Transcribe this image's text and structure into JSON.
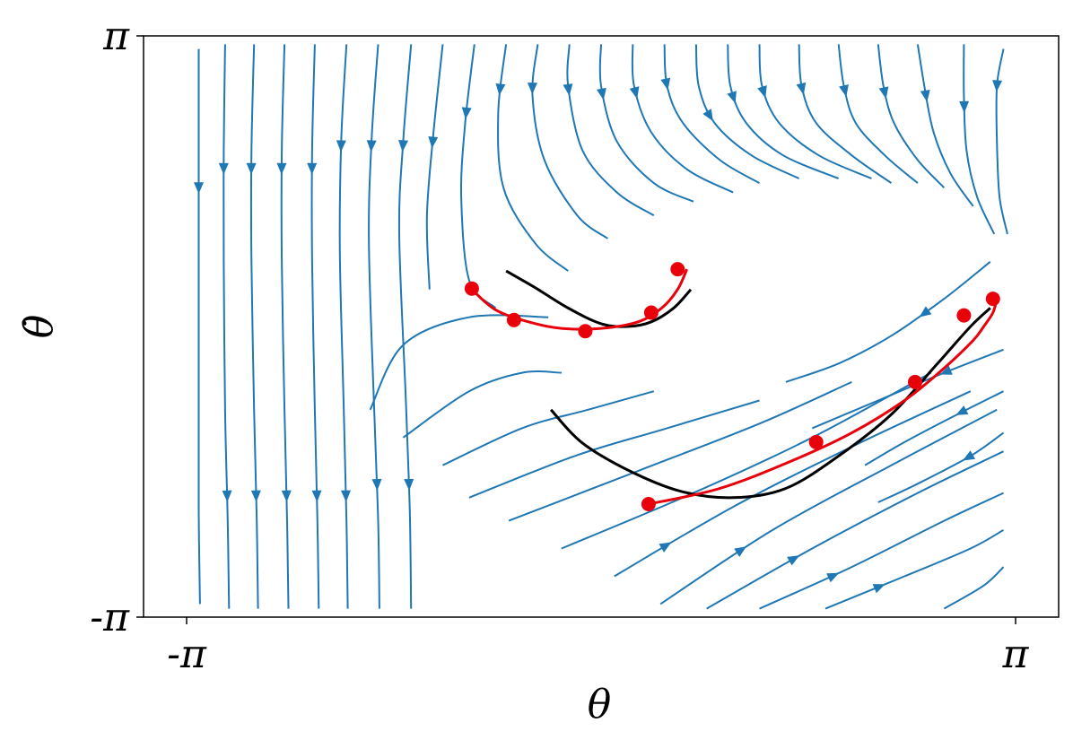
{
  "chart_data": {
    "type": "streamplot",
    "xlabel": "θ",
    "ylabel": "θ̇",
    "xlim": [
      -3.14159,
      3.14159
    ],
    "ylim": [
      -3.14159,
      3.14159
    ],
    "xticks": [
      {
        "value": -3.14159,
        "label": "-π"
      },
      {
        "value": 3.14159,
        "label": "π"
      }
    ],
    "yticks": [
      {
        "value": -3.14159,
        "label": "-π"
      },
      {
        "value": 3.14159,
        "label": "π"
      }
    ],
    "grid": false,
    "colors": {
      "stream": "#1f77b4",
      "trajectory_true": "#000000",
      "trajectory_pred": "#e8000b",
      "axes": "#000000"
    },
    "streamlines": [
      {
        "points": [
          [
            -3.05,
            3.0
          ],
          [
            -3.05,
            1.8
          ],
          [
            -3.05,
            0.6
          ],
          [
            -3.05,
            -0.8
          ],
          [
            -3.05,
            -2.0
          ],
          [
            -3.04,
            -3.0
          ]
        ],
        "arrows": [
          0.25
        ]
      },
      {
        "points": [
          [
            -2.85,
            3.05
          ],
          [
            -2.86,
            1.9
          ],
          [
            -2.86,
            0.7
          ],
          [
            -2.85,
            -0.9
          ],
          [
            -2.83,
            -2.1
          ],
          [
            -2.82,
            -3.05
          ]
        ],
        "arrows": [
          0.22,
          0.8
        ]
      },
      {
        "points": [
          [
            -2.63,
            3.05
          ],
          [
            -2.65,
            1.9
          ],
          [
            -2.65,
            0.7
          ],
          [
            -2.63,
            -0.9
          ],
          [
            -2.61,
            -2.1
          ],
          [
            -2.6,
            -3.05
          ]
        ],
        "arrows": [
          0.22,
          0.8
        ]
      },
      {
        "points": [
          [
            -2.4,
            3.05
          ],
          [
            -2.42,
            1.9
          ],
          [
            -2.42,
            0.7
          ],
          [
            -2.4,
            -0.9
          ],
          [
            -2.38,
            -2.1
          ],
          [
            -2.37,
            -3.05
          ]
        ],
        "arrows": [
          0.22,
          0.8
        ]
      },
      {
        "points": [
          [
            -2.17,
            3.05
          ],
          [
            -2.19,
            1.9
          ],
          [
            -2.19,
            0.7
          ],
          [
            -2.17,
            -0.9
          ],
          [
            -2.15,
            -2.1
          ],
          [
            -2.14,
            -3.05
          ]
        ],
        "arrows": [
          0.22,
          0.8
        ]
      },
      {
        "points": [
          [
            -1.93,
            3.05
          ],
          [
            -1.97,
            2.0
          ],
          [
            -1.98,
            0.8
          ],
          [
            -1.95,
            -0.9
          ],
          [
            -1.93,
            -2.1
          ],
          [
            -1.92,
            -3.05
          ]
        ],
        "arrows": [
          0.18,
          0.8
        ]
      },
      {
        "points": [
          [
            -1.69,
            3.05
          ],
          [
            -1.74,
            2.0
          ],
          [
            -1.76,
            0.9
          ],
          [
            -1.72,
            -0.9
          ],
          [
            -1.69,
            -2.1
          ],
          [
            -1.68,
            -3.05
          ]
        ],
        "arrows": [
          0.18,
          0.78
        ]
      },
      {
        "points": [
          [
            -1.44,
            3.05
          ],
          [
            -1.5,
            2.0
          ],
          [
            -1.53,
            1.0
          ],
          [
            -1.48,
            -0.8
          ],
          [
            -1.45,
            -2.0
          ],
          [
            -1.44,
            -3.05
          ]
        ],
        "arrows": [
          0.18,
          0.78
        ]
      },
      {
        "points": [
          [
            -1.2,
            3.05
          ],
          [
            -1.27,
            2.1
          ],
          [
            -1.32,
            1.2
          ],
          [
            -1.3,
            0.4
          ]
        ],
        "arrows": [
          0.4
        ]
      },
      {
        "points": [
          [
            -0.96,
            3.05
          ],
          [
            -1.03,
            2.2
          ],
          [
            -1.06,
            1.4
          ],
          [
            -1.0,
            0.5
          ],
          [
            -0.8,
            0.2
          ]
        ],
        "arrows": [
          0.25
        ]
      },
      {
        "points": [
          [
            -0.72,
            3.05
          ],
          [
            -0.78,
            2.3
          ],
          [
            -0.74,
            1.5
          ],
          [
            -0.5,
            0.9
          ],
          [
            -0.25,
            0.6
          ]
        ],
        "arrows": [
          0.18
        ]
      },
      {
        "points": [
          [
            -0.48,
            3.05
          ],
          [
            -0.52,
            2.5
          ],
          [
            -0.43,
            1.8
          ],
          [
            -0.18,
            1.2
          ],
          [
            0.05,
            0.95
          ]
        ],
        "arrows": [
          0.2
        ]
      },
      {
        "points": [
          [
            -0.24,
            3.05
          ],
          [
            -0.25,
            2.6
          ],
          [
            -0.14,
            1.9
          ],
          [
            0.12,
            1.45
          ],
          [
            0.4,
            1.2
          ]
        ],
        "arrows": [
          0.22
        ]
      },
      {
        "points": [
          [
            0.0,
            3.05
          ],
          [
            0.0,
            2.6
          ],
          [
            0.12,
            2.0
          ],
          [
            0.4,
            1.55
          ],
          [
            0.7,
            1.35
          ]
        ],
        "arrows": [
          0.25
        ]
      },
      {
        "points": [
          [
            0.24,
            3.05
          ],
          [
            0.25,
            2.6
          ],
          [
            0.38,
            2.1
          ],
          [
            0.65,
            1.7
          ],
          [
            1.0,
            1.45
          ]
        ],
        "arrows": [
          0.25
        ]
      },
      {
        "points": [
          [
            0.48,
            3.05
          ],
          [
            0.5,
            2.6
          ],
          [
            0.62,
            2.2
          ],
          [
            0.9,
            1.8
          ],
          [
            1.2,
            1.55
          ]
        ],
        "arrows": [
          0.22
        ]
      },
      {
        "points": [
          [
            0.72,
            3.05
          ],
          [
            0.74,
            2.6
          ],
          [
            0.86,
            2.2
          ],
          [
            1.14,
            1.85
          ],
          [
            1.5,
            1.6
          ]
        ],
        "arrows": [
          0.4
        ]
      },
      {
        "points": [
          [
            0.96,
            3.05
          ],
          [
            0.98,
            2.6
          ],
          [
            1.1,
            2.2
          ],
          [
            1.38,
            1.85
          ],
          [
            1.8,
            1.6
          ]
        ],
        "arrows": [
          0.28
        ]
      },
      {
        "points": [
          [
            -1.75,
            -0.9
          ],
          [
            -1.5,
            -0.2
          ],
          [
            -1.0,
            0.1
          ],
          [
            -0.4,
            0.1
          ]
        ],
        "arrows": []
      },
      {
        "points": [
          [
            -1.5,
            -1.2
          ],
          [
            -1.0,
            -0.7
          ],
          [
            -0.6,
            -0.5
          ],
          [
            -0.3,
            -0.5
          ]
        ],
        "arrows": []
      },
      {
        "points": [
          [
            -1.2,
            -1.5
          ],
          [
            -0.6,
            -1.1
          ],
          [
            -0.1,
            -0.9
          ],
          [
            0.4,
            -0.7
          ]
        ],
        "arrows": []
      },
      {
        "points": [
          [
            -1.0,
            -1.85
          ],
          [
            -0.2,
            -1.4
          ],
          [
            0.5,
            -1.1
          ],
          [
            1.2,
            -0.8
          ]
        ],
        "arrows": []
      },
      {
        "points": [
          [
            -0.7,
            -2.1
          ],
          [
            0.3,
            -1.55
          ],
          [
            1.2,
            -1.05
          ],
          [
            1.9,
            -0.6
          ]
        ],
        "arrows": []
      },
      {
        "points": [
          [
            -0.3,
            -2.4
          ],
          [
            0.7,
            -1.8
          ],
          [
            1.6,
            -1.2
          ],
          [
            2.5,
            -0.5
          ]
        ],
        "arrows": []
      },
      {
        "points": [
          [
            0.1,
            -2.7
          ],
          [
            1.0,
            -1.95
          ],
          [
            1.9,
            -1.3
          ],
          [
            2.8,
            -0.7
          ]
        ],
        "arrows": [
          0.15
        ]
      },
      {
        "points": [
          [
            0.45,
            -3.0
          ],
          [
            1.3,
            -2.2
          ],
          [
            2.2,
            -1.5
          ],
          [
            3.0,
            -0.9
          ]
        ],
        "arrows": [
          0.25
        ]
      },
      {
        "points": [
          [
            0.8,
            -3.05
          ],
          [
            1.6,
            -2.4
          ],
          [
            2.4,
            -1.8
          ],
          [
            3.05,
            -1.35
          ]
        ],
        "arrows": [
          0.3
        ]
      },
      {
        "points": [
          [
            1.2,
            -3.05
          ],
          [
            1.9,
            -2.6
          ],
          [
            2.6,
            -2.1
          ],
          [
            3.05,
            -1.8
          ]
        ],
        "arrows": [
          0.3
        ]
      },
      {
        "points": [
          [
            1.7,
            -3.05
          ],
          [
            2.3,
            -2.7
          ],
          [
            2.8,
            -2.4
          ],
          [
            3.05,
            -2.2
          ]
        ],
        "arrows": [
          0.3
        ]
      },
      {
        "points": [
          [
            2.6,
            -3.05
          ],
          [
            2.9,
            -2.8
          ],
          [
            3.05,
            -2.6
          ]
        ],
        "arrows": []
      },
      {
        "points": [
          [
            1.2,
            3.05
          ],
          [
            1.22,
            2.6
          ],
          [
            1.35,
            2.2
          ],
          [
            1.65,
            1.85
          ],
          [
            2.05,
            1.6
          ]
        ],
        "arrows": [
          0.25
        ]
      },
      {
        "points": [
          [
            1.5,
            3.05
          ],
          [
            1.52,
            2.6
          ],
          [
            1.63,
            2.2
          ],
          [
            1.9,
            1.85
          ],
          [
            2.2,
            1.55
          ]
        ],
        "arrows": [
          0.25
        ]
      },
      {
        "points": [
          [
            1.8,
            3.05
          ],
          [
            1.84,
            2.6
          ],
          [
            1.93,
            2.2
          ],
          [
            2.15,
            1.85
          ],
          [
            2.4,
            1.55
          ]
        ],
        "arrows": [
          0.28
        ]
      },
      {
        "points": [
          [
            2.1,
            3.05
          ],
          [
            2.14,
            2.6
          ],
          [
            2.22,
            2.2
          ],
          [
            2.4,
            1.8
          ],
          [
            2.6,
            1.5
          ]
        ],
        "arrows": [
          0.3
        ]
      },
      {
        "points": [
          [
            2.4,
            3.05
          ],
          [
            2.45,
            2.6
          ],
          [
            2.52,
            2.1
          ],
          [
            2.65,
            1.65
          ],
          [
            2.82,
            1.3
          ]
        ],
        "arrows": [
          0.3
        ]
      },
      {
        "points": [
          [
            2.75,
            3.05
          ],
          [
            2.75,
            2.5
          ],
          [
            2.77,
            1.9
          ],
          [
            2.85,
            1.4
          ],
          [
            2.98,
            1.0
          ]
        ],
        "arrows": [
          0.32
        ]
      },
      {
        "points": [
          [
            3.05,
            3.0
          ],
          [
            3.0,
            2.6
          ],
          [
            3.0,
            2.0
          ],
          [
            3.02,
            1.4
          ],
          [
            3.08,
            1.0
          ]
        ],
        "arrows": [
          0.2
        ]
      },
      {
        "points": [
          [
            2.95,
            0.7
          ],
          [
            2.6,
            0.3
          ],
          [
            2.2,
            -0.1
          ],
          [
            1.8,
            -0.4
          ],
          [
            1.4,
            -0.6
          ]
        ],
        "arrows": [
          0.35
        ]
      },
      {
        "points": [
          [
            3.05,
            -0.25
          ],
          [
            2.6,
            -0.5
          ],
          [
            2.1,
            -0.8
          ],
          [
            1.6,
            -1.1
          ]
        ],
        "arrows": [
          0.3
        ]
      },
      {
        "points": [
          [
            3.05,
            -0.7
          ],
          [
            2.7,
            -0.95
          ],
          [
            2.3,
            -1.25
          ],
          [
            2.0,
            -1.5
          ]
        ],
        "arrows": [
          0.3
        ]
      },
      {
        "points": [
          [
            3.05,
            -1.15
          ],
          [
            2.8,
            -1.4
          ],
          [
            2.4,
            -1.7
          ],
          [
            2.1,
            -1.9
          ]
        ],
        "arrows": [
          0.3
        ]
      }
    ],
    "trajectories": [
      {
        "name": "",
        "style": "true",
        "points": [
          [
            -0.72,
            0.6
          ],
          [
            -0.5,
            0.42
          ],
          [
            -0.25,
            0.2
          ],
          [
            0.0,
            0.03
          ],
          [
            0.2,
            0.0
          ],
          [
            0.38,
            0.05
          ],
          [
            0.55,
            0.2
          ],
          [
            0.68,
            0.4
          ]
        ]
      },
      {
        "name": "",
        "style": "pred",
        "points": [
          [
            -0.98,
            0.4
          ],
          [
            -0.8,
            0.18
          ],
          [
            -0.55,
            0.05
          ],
          [
            -0.3,
            -0.02
          ],
          [
            0.0,
            -0.02
          ],
          [
            0.28,
            0.05
          ],
          [
            0.46,
            0.2
          ],
          [
            0.58,
            0.4
          ],
          [
            0.65,
            0.62
          ]
        ]
      },
      {
        "name": "",
        "style": "pred_markers",
        "points": [
          [
            -0.98,
            0.41
          ],
          [
            -0.66,
            0.07
          ],
          [
            -0.12,
            -0.05
          ],
          [
            0.38,
            0.15
          ],
          [
            0.58,
            0.62
          ]
        ]
      },
      {
        "name": "",
        "style": "true",
        "points": [
          [
            -0.38,
            -0.9
          ],
          [
            -0.15,
            -1.25
          ],
          [
            0.2,
            -1.55
          ],
          [
            0.6,
            -1.78
          ],
          [
            1.0,
            -1.85
          ],
          [
            1.4,
            -1.75
          ],
          [
            1.8,
            -1.4
          ],
          [
            2.2,
            -0.95
          ],
          [
            2.55,
            -0.4
          ],
          [
            2.8,
            0.0
          ],
          [
            2.95,
            0.2
          ]
        ]
      },
      {
        "name": "",
        "style": "pred",
        "points": [
          [
            0.36,
            -1.92
          ],
          [
            0.9,
            -1.75
          ],
          [
            1.45,
            -1.45
          ],
          [
            1.9,
            -1.15
          ],
          [
            2.3,
            -0.8
          ],
          [
            2.6,
            -0.45
          ],
          [
            2.82,
            -0.15
          ],
          [
            2.9,
            0.0
          ],
          [
            2.97,
            0.15
          ],
          [
            3.0,
            0.3
          ]
        ]
      },
      {
        "name": "",
        "style": "pred_markers",
        "points": [
          [
            0.36,
            -1.92
          ],
          [
            1.63,
            -1.25
          ],
          [
            2.38,
            -0.6
          ],
          [
            2.75,
            0.12
          ],
          [
            2.97,
            0.3
          ]
        ]
      }
    ]
  }
}
